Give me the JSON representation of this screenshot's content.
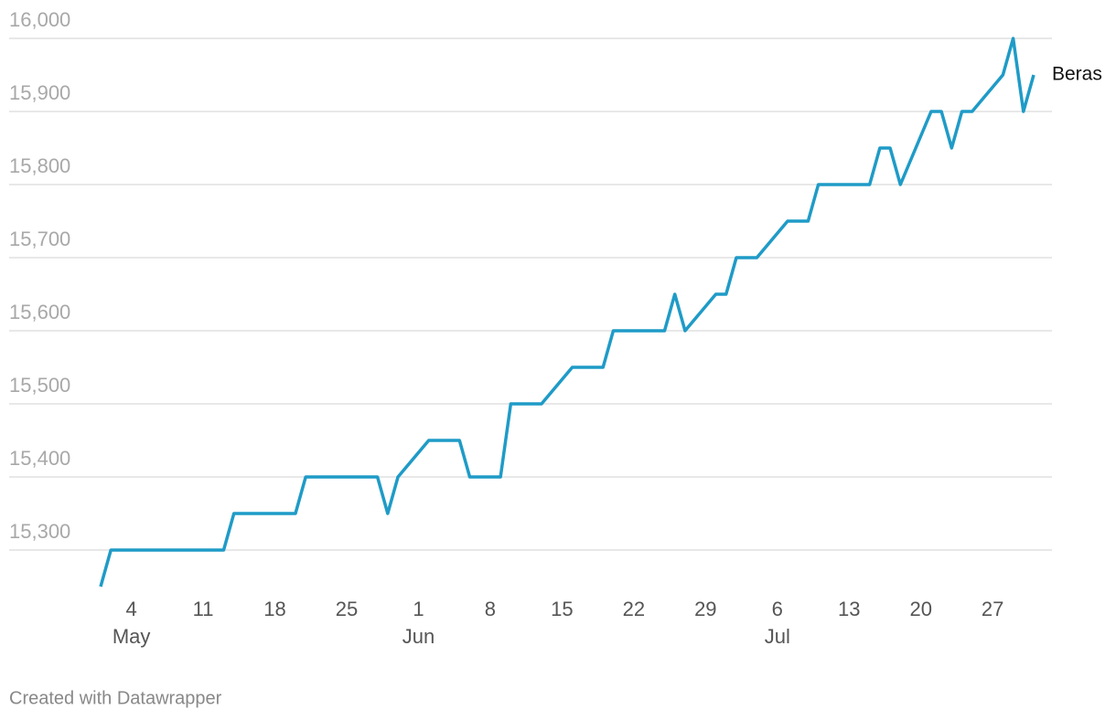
{
  "chart_data": {
    "type": "line",
    "credit": "Created with Datawrapper",
    "x": [
      "05-01",
      "05-02",
      "05-13",
      "05-14",
      "05-20",
      "05-21",
      "05-28",
      "05-29",
      "05-30",
      "06-02",
      "06-05",
      "06-06",
      "06-09",
      "06-10",
      "06-13",
      "06-16",
      "06-19",
      "06-20",
      "06-25",
      "06-26",
      "06-27",
      "06-30",
      "07-01",
      "07-02",
      "07-04",
      "07-07",
      "07-09",
      "07-10",
      "07-15",
      "07-16",
      "07-17",
      "07-18",
      "07-21",
      "07-22",
      "07-23",
      "07-24",
      "07-25",
      "07-28",
      "07-29",
      "07-30",
      "07-31"
    ],
    "series": [
      {
        "name": "Beras",
        "color": "#1f9bc7",
        "values": [
          15250,
          15300,
          15300,
          15350,
          15350,
          15400,
          15400,
          15350,
          15400,
          15450,
          15450,
          15400,
          15400,
          15500,
          15500,
          15550,
          15550,
          15600,
          15600,
          15650,
          15600,
          15650,
          15650,
          15700,
          15700,
          15750,
          15750,
          15800,
          15800,
          15850,
          15850,
          15800,
          15900,
          15900,
          15850,
          15900,
          15900,
          15950,
          16000,
          15900,
          15950
        ]
      }
    ],
    "xlim": [
      "05-01",
      "07-31"
    ],
    "xticks": [
      {
        "value": "05-04",
        "label": "4"
      },
      {
        "value": "05-11",
        "label": "11"
      },
      {
        "value": "05-18",
        "label": "18"
      },
      {
        "value": "05-25",
        "label": "25"
      },
      {
        "value": "06-01",
        "label": "1"
      },
      {
        "value": "06-08",
        "label": "8"
      },
      {
        "value": "06-15",
        "label": "15"
      },
      {
        "value": "06-22",
        "label": "22"
      },
      {
        "value": "06-29",
        "label": "29"
      },
      {
        "value": "07-06",
        "label": "6"
      },
      {
        "value": "07-13",
        "label": "13"
      },
      {
        "value": "07-20",
        "label": "20"
      },
      {
        "value": "07-27",
        "label": "27"
      }
    ],
    "month_labels": [
      {
        "value": "05-04",
        "label": "May"
      },
      {
        "value": "06-01",
        "label": "Jun"
      },
      {
        "value": "07-06",
        "label": "Jul"
      }
    ],
    "ylim": [
      15250,
      16000
    ],
    "yticks": [
      {
        "value": 15300,
        "label": "15,300"
      },
      {
        "value": 15400,
        "label": "15,400"
      },
      {
        "value": 15500,
        "label": "15,500"
      },
      {
        "value": 15600,
        "label": "15,600"
      },
      {
        "value": 15700,
        "label": "15,700"
      },
      {
        "value": 15800,
        "label": "15,800"
      },
      {
        "value": 15900,
        "label": "15,900"
      },
      {
        "value": 16000,
        "label": "16,000"
      }
    ],
    "grid": true
  }
}
